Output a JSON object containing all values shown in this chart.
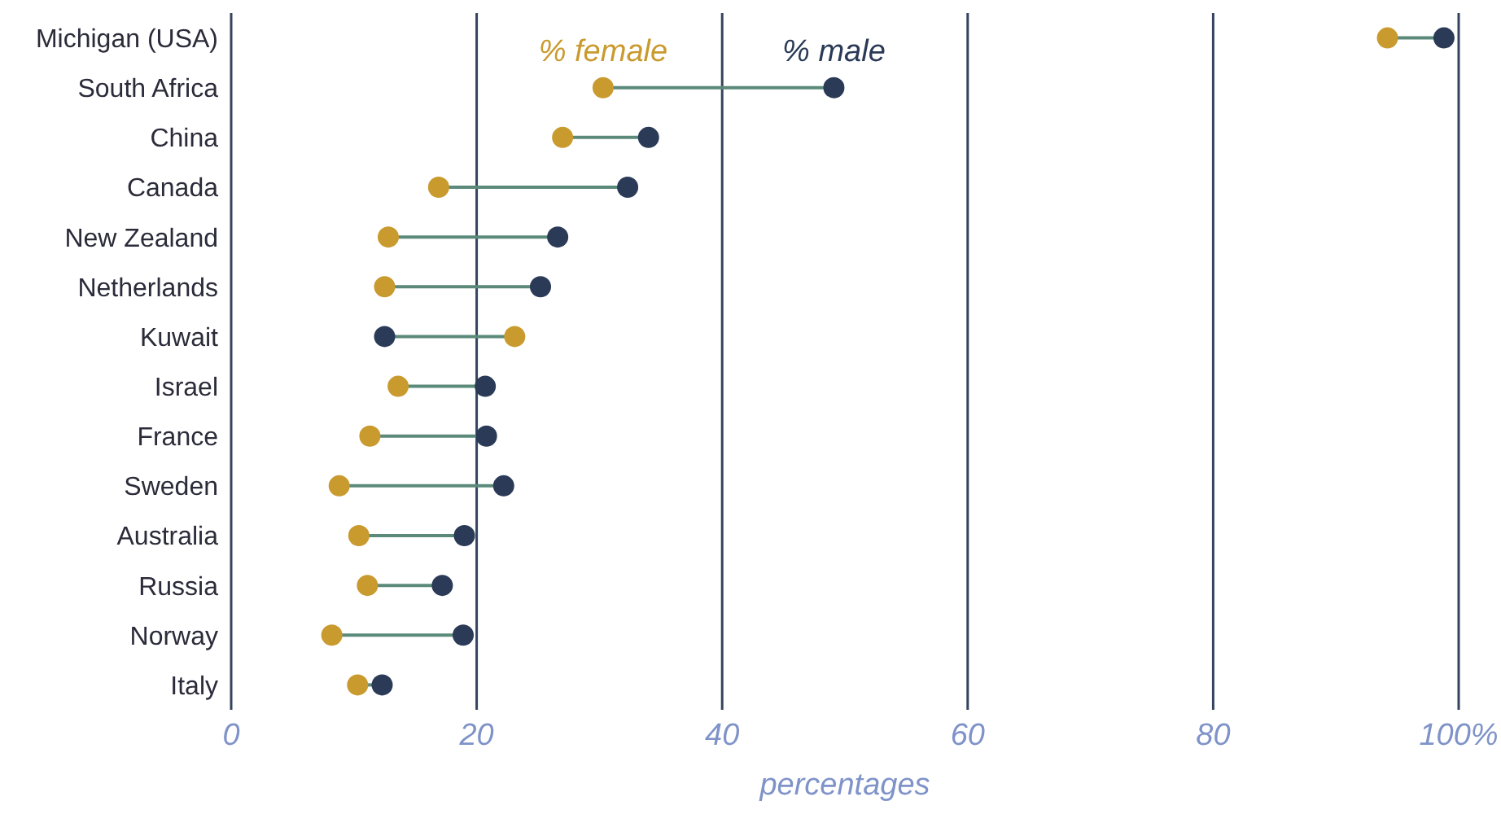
{
  "chart_data": {
    "type": "scatter",
    "xlabel": "percentages",
    "categories": [
      "Michigan (USA)",
      "South Africa",
      "China",
      "Canada",
      "New Zealand",
      "Netherlands",
      "Kuwait",
      "Israel",
      "France",
      "Sweden",
      "Australia",
      "Russia",
      "Norway",
      "Italy"
    ],
    "orientation": "horizontal",
    "xlim": [
      0,
      100
    ],
    "xticks": [
      0,
      20,
      40,
      60,
      80,
      {
        "value": 100,
        "label": "100%"
      }
    ],
    "grid": "x",
    "marker": "circle",
    "series": [
      {
        "name": "% female",
        "color": "#c99a2e",
        "values": [
          94.2,
          30.3,
          27.0,
          16.9,
          12.8,
          12.5,
          23.1,
          13.6,
          11.3,
          8.8,
          10.4,
          11.1,
          8.2,
          10.3
        ]
      },
      {
        "name": "% male",
        "color": "#2a3a57",
        "values": [
          98.8,
          49.1,
          34.0,
          32.3,
          26.6,
          25.2,
          12.5,
          20.7,
          20.8,
          22.2,
          19.0,
          17.2,
          18.9,
          12.3
        ]
      }
    ]
  }
}
